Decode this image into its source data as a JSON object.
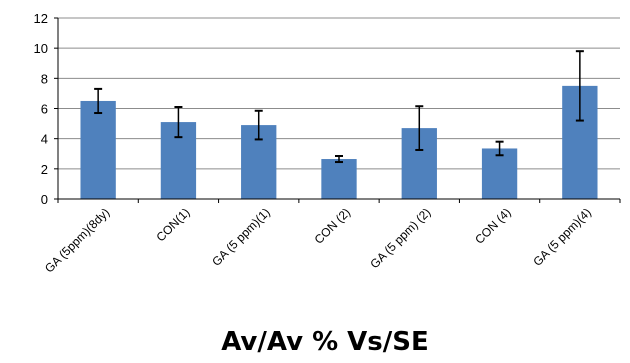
{
  "chart_data": {
    "type": "bar",
    "title": "",
    "xlabel": "Av/Av % Vs/SE",
    "ylabel": "",
    "ylim": [
      0,
      12
    ],
    "yticks": [
      0,
      2,
      4,
      6,
      8,
      10,
      12
    ],
    "grid": true,
    "legend": "none",
    "bar_color": "#4F81BD",
    "categories": [
      "GA (5ppm)(8dy)",
      "CON(1)",
      "GA (5 ppm)(1)",
      "CON (2)",
      "GA (5 ppm) (2)",
      "CON (4)",
      "GA (5 ppm)(4)"
    ],
    "values": [
      6.5,
      5.1,
      4.9,
      2.65,
      4.7,
      3.35,
      7.5
    ],
    "errors": [
      0.8,
      1.0,
      0.95,
      0.2,
      1.45,
      0.45,
      2.3
    ]
  }
}
